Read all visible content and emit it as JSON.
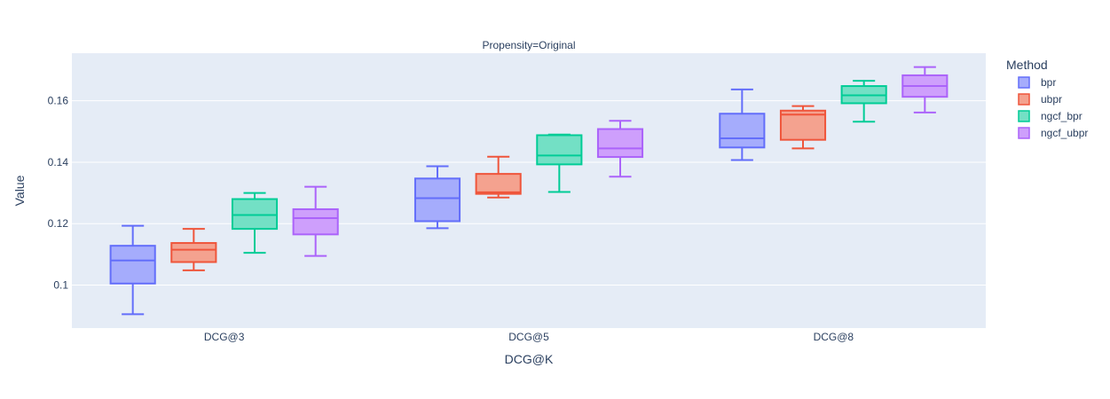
{
  "chart_data": {
    "type": "box",
    "title": "Propensity=Original",
    "xlabel": "DCG@K",
    "ylabel": "Value",
    "categories": [
      "DCG@3",
      "DCG@5",
      "DCG@8"
    ],
    "ylim": [
      0.086,
      0.1755
    ],
    "yticks": [
      0.1,
      0.12,
      0.14,
      0.16
    ],
    "ytick_labels": [
      "0.1",
      "0.12",
      "0.14",
      "0.16"
    ],
    "grid": true,
    "legend": {
      "title": "Method",
      "position": "right"
    },
    "series": [
      {
        "name": "bpr",
        "color": "#636efa",
        "fill": "#a5acfc",
        "boxes": [
          {
            "min": 0.0905,
            "q1": 0.1005,
            "median": 0.108,
            "q3": 0.1128,
            "max": 0.1193
          },
          {
            "min": 0.1185,
            "q1": 0.1208,
            "median": 0.1283,
            "q3": 0.1347,
            "max": 0.1387
          },
          {
            "min": 0.1407,
            "q1": 0.1448,
            "median": 0.1478,
            "q3": 0.1558,
            "max": 0.1637
          }
        ]
      },
      {
        "name": "ubpr",
        "color": "#ef553b",
        "fill": "#f4a28f",
        "boxes": [
          {
            "min": 0.1048,
            "q1": 0.1075,
            "median": 0.1115,
            "q3": 0.1137,
            "max": 0.1183
          },
          {
            "min": 0.1285,
            "q1": 0.1297,
            "median": 0.1302,
            "q3": 0.1362,
            "max": 0.1418
          },
          {
            "min": 0.1445,
            "q1": 0.1473,
            "median": 0.1555,
            "q3": 0.1568,
            "max": 0.1583
          }
        ]
      },
      {
        "name": "ngcf_bpr",
        "color": "#00cc96",
        "fill": "#73e0c5",
        "boxes": [
          {
            "min": 0.1105,
            "q1": 0.1183,
            "median": 0.1228,
            "q3": 0.128,
            "max": 0.13
          },
          {
            "min": 0.1303,
            "q1": 0.1393,
            "median": 0.1422,
            "q3": 0.1488,
            "max": 0.149
          },
          {
            "min": 0.1532,
            "q1": 0.1592,
            "median": 0.1618,
            "q3": 0.1648,
            "max": 0.1665
          }
        ]
      },
      {
        "name": "ngcf_ubpr",
        "color": "#ab63fa",
        "fill": "#ce9ffc",
        "boxes": [
          {
            "min": 0.1095,
            "q1": 0.1165,
            "median": 0.1218,
            "q3": 0.1247,
            "max": 0.132
          },
          {
            "min": 0.1353,
            "q1": 0.1417,
            "median": 0.1445,
            "q3": 0.1508,
            "max": 0.1535
          },
          {
            "min": 0.1562,
            "q1": 0.1613,
            "median": 0.1648,
            "q3": 0.1683,
            "max": 0.171
          }
        ]
      }
    ]
  }
}
